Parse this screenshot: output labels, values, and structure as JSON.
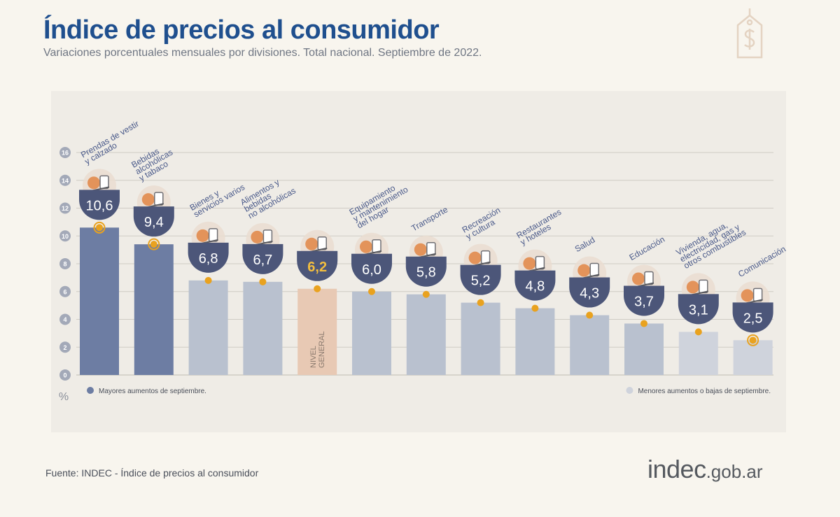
{
  "header": {
    "title": "Índice de precios al consumidor",
    "subtitle": "Variaciones porcentuales mensuales por divisiones. Total nacional. Septiembre de 2022."
  },
  "footer": {
    "source": "Fuente: INDEC - Índice de precios al consumidor",
    "logo_main": "indec",
    "logo_domain": ".gob.ar"
  },
  "colors": {
    "dark_bar": "#6d7da3",
    "light_bar": "#b9c1cf",
    "lighter_bar": "#cfd3dc",
    "general_bar": "#e8c9b4",
    "marker": "#e9a21f",
    "badge": "#4c5679",
    "badge_general_text": "#f3be3e",
    "grid": "#cfcbc4"
  },
  "chart_data": {
    "type": "bar",
    "categories": [
      "Prendas de vestir y calzado",
      "Bebidas alcohólicas y tabaco",
      "Bienes y servicios varios",
      "Alimentos y bebidas no alcohólicas",
      "NIVEL GENERAL",
      "Equipamiento y mantenimiento del hogar",
      "Transporte",
      "Recreación y cultura",
      "Restaurantes y hoteles",
      "Salud",
      "Educación",
      "Vivienda, agua, electricidad, gas y otros combustibles",
      "Comunicación"
    ],
    "values": [
      10.6,
      9.4,
      6.8,
      6.7,
      6.2,
      6.0,
      5.8,
      5.2,
      4.8,
      4.3,
      3.7,
      3.1,
      2.5
    ],
    "value_labels": [
      "10,6",
      "9,4",
      "6,8",
      "6,7",
      "6,2",
      "6,0",
      "5,8",
      "5,2",
      "4,8",
      "4,3",
      "3,7",
      "3,1",
      "2,5"
    ],
    "category_label_lines": [
      [
        "Prendas de vestir",
        "y calzado"
      ],
      [
        "Bebidas",
        "alcohólicas",
        "y tabaco"
      ],
      [
        "Bienes y",
        "servicios varios"
      ],
      [
        "Alimentos y",
        "bebidas",
        "no alcohólicas"
      ],
      [
        "NIVEL",
        "GENERAL"
      ],
      [
        "Equipamiento",
        "y mantenimiento",
        "del hogar"
      ],
      [
        "Transporte"
      ],
      [
        "Recreación",
        "y cultura"
      ],
      [
        "Restaurantes",
        "y hoteles"
      ],
      [
        "Salud"
      ],
      [
        "Educación"
      ],
      [
        "Vivienda, agua,",
        "electricidad, gas y",
        "otros combustibles"
      ],
      [
        "Comunicación"
      ]
    ],
    "bar_group": [
      "top",
      "top",
      "mid",
      "mid",
      "general",
      "mid",
      "mid",
      "mid",
      "mid",
      "mid",
      "mid",
      "low",
      "low"
    ],
    "icons": [
      "clothing-icon",
      "drinks-icon",
      "personal-care-icon",
      "food-icon",
      "basket-icon",
      "washing-machine-icon",
      "sube-card-icon",
      "beach-umbrella-icon",
      "cutlery-icon",
      "first-aid-icon",
      "notebook-icon",
      "lightbulb-icon",
      "phone-icon"
    ],
    "ylim": [
      0,
      16
    ],
    "yticks": [
      0,
      2,
      4,
      6,
      8,
      10,
      12,
      14,
      16
    ],
    "ylabel": "%",
    "grid": true,
    "legend": [
      {
        "label": "Mayores aumentos de septiembre.",
        "group": "top",
        "position": "bottom-left"
      },
      {
        "label": "Menores aumentos o bajas de septiembre.",
        "group": "low",
        "position": "bottom-right"
      }
    ]
  }
}
